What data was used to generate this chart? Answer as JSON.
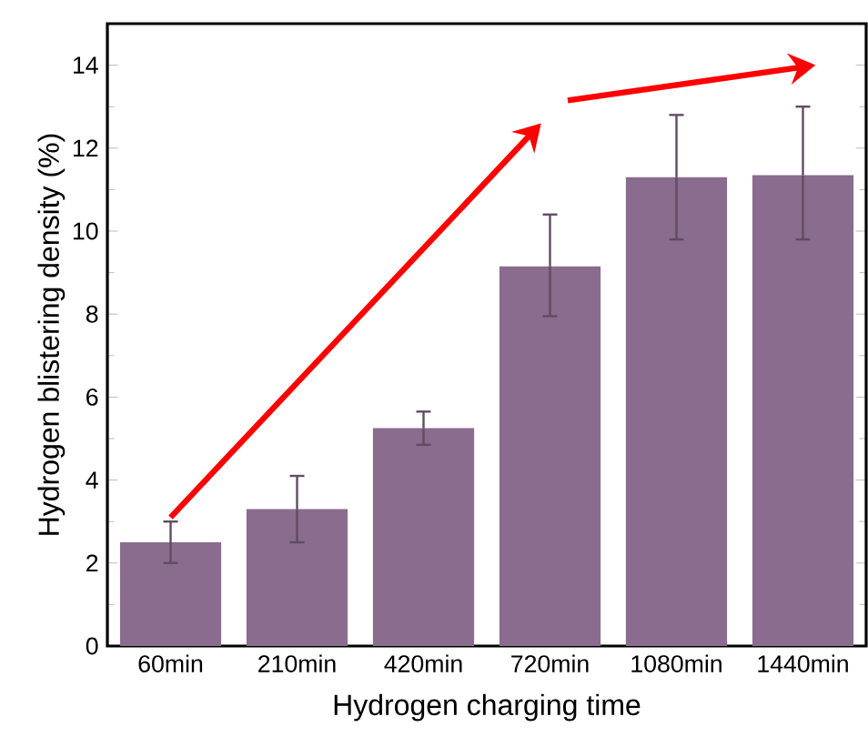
{
  "chart_data": {
    "type": "bar",
    "xlabel": "Hydrogen charging time",
    "ylabel": "Hydrogen blistering density (%)",
    "categories": [
      "60min",
      "210min",
      "420min",
      "720min",
      "1080min",
      "1440min"
    ],
    "values": [
      2.5,
      3.3,
      5.25,
      9.15,
      11.3,
      11.35
    ],
    "errors": [
      [
        2.0,
        3.0
      ],
      [
        2.5,
        4.1
      ],
      [
        4.85,
        5.65
      ],
      [
        7.95,
        10.4
      ],
      [
        9.8,
        12.8
      ],
      [
        9.8,
        13.0
      ]
    ],
    "color": "#8a6c8e",
    "ylim": [
      0,
      15
    ],
    "yticks": [
      0,
      2,
      4,
      6,
      8,
      10,
      12,
      14
    ]
  }
}
